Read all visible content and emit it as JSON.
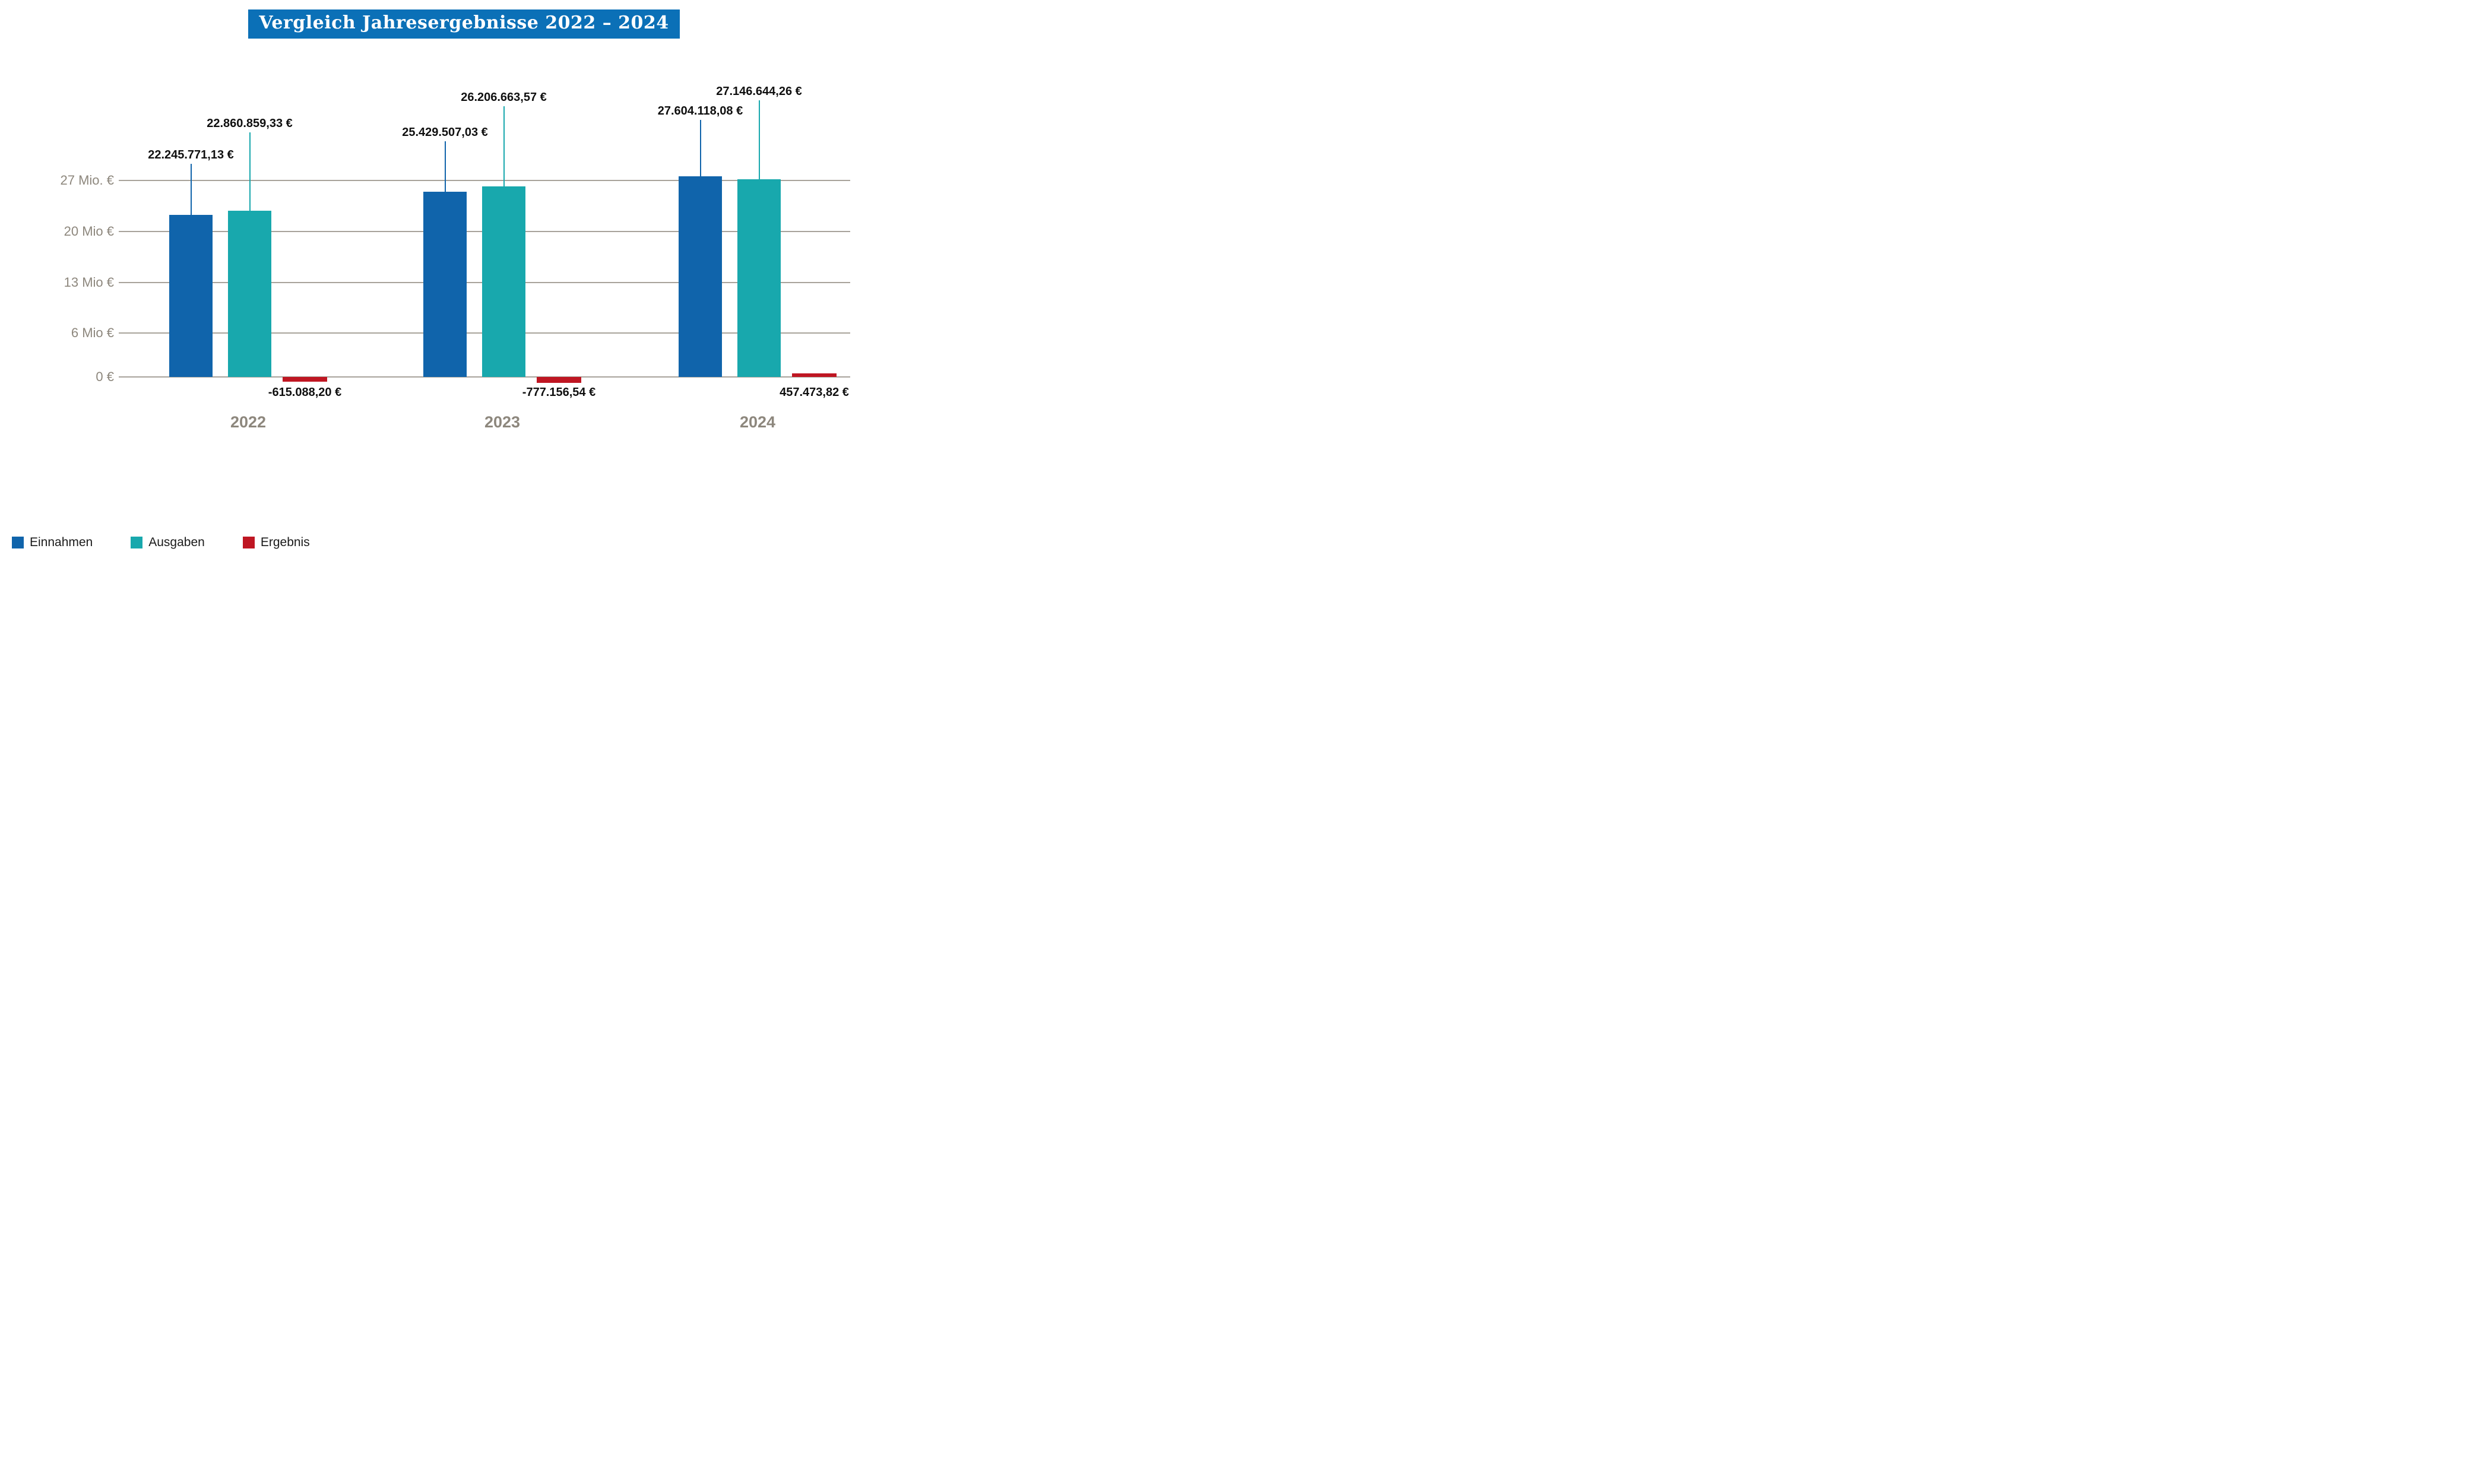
{
  "title": "Vergleich Jahresergebnisse 2022 – 2024",
  "colors": {
    "title_bg": "#0b70b7",
    "title_text": "#ffffff",
    "grid": "#a8a39b",
    "axis_text": "#8d877d",
    "year_text": "#8d877d",
    "value_text": "#0f0f0f"
  },
  "chart_data": {
    "type": "bar",
    "title": "Vergleich Jahresergebnisse 2022 – 2024",
    "categories": [
      "2022",
      "2023",
      "2024"
    ],
    "series": [
      {
        "name": "Einnahmen",
        "color": "#1064ab",
        "values": [
          22245771.13,
          25429507.03,
          27604118.08
        ],
        "labels": [
          "22.245.771,13 €",
          "25.429.507,03 €",
          "27.604.118,08 €"
        ]
      },
      {
        "name": "Ausgaben",
        "color": "#18a8ad",
        "values": [
          22860859.33,
          26206663.57,
          27146644.26
        ],
        "labels": [
          "22.860.859,33 €",
          "26.206.663,57 €",
          "27.146.644,26 €"
        ]
      },
      {
        "name": "Ergebnis",
        "color": "#bf1622",
        "values": [
          -615088.2,
          -777156.54,
          457473.82
        ],
        "labels": [
          "-615.088,20 €",
          "-777.156,54 €",
          "457.473,82 €"
        ]
      }
    ],
    "y_ticks": [
      {
        "label": "0 €",
        "value": 0
      },
      {
        "label": "6 Mio €",
        "value": 6000000
      },
      {
        "label": "13 Mio €",
        "value": 13000000
      },
      {
        "label": "20 Mio €",
        "value": 20000000
      },
      {
        "label": "27 Mio. €",
        "value": 27000000
      }
    ],
    "ylim": [
      -1000000,
      28000000
    ],
    "grid": true,
    "legend_position": "bottom"
  }
}
